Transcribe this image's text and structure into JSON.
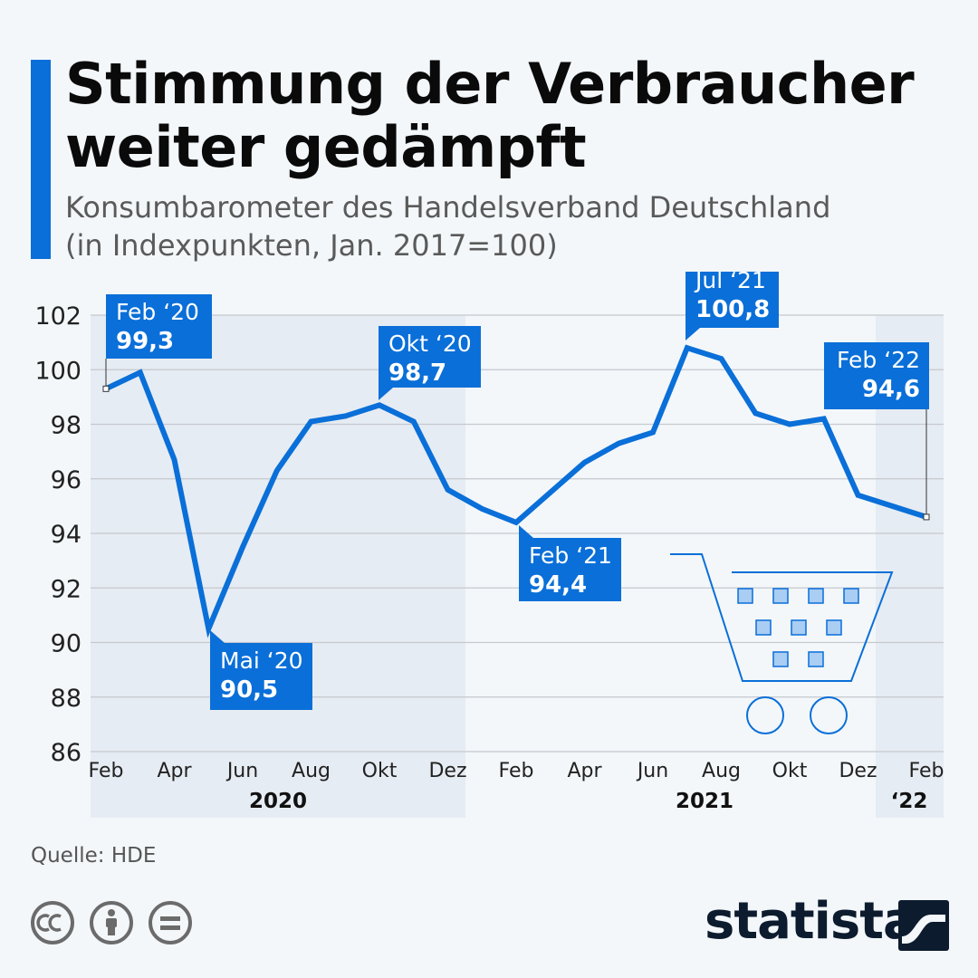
{
  "header": {
    "title": "Stimmung der Verbraucher weiter gedämpft",
    "subtitle_line1": "Konsumbarometer des Handelsverband Deutschland",
    "subtitle_line2": "(in Indexpunkten, Jan. 2017=100)"
  },
  "footer": {
    "source": "Quelle: HDE",
    "brand": "statista"
  },
  "colors": {
    "accent": "#0a6fd8",
    "line": "#0a6fd8",
    "shade": "#e6ecf3",
    "grid": "#c5c9ce"
  },
  "icons": [
    "cc-icon",
    "by-icon",
    "nd-icon",
    "shopping-cart-icon",
    "statista-logo-icon"
  ],
  "chart_data": {
    "type": "line",
    "ylim": [
      86,
      102
    ],
    "yticks": [
      86,
      88,
      90,
      92,
      94,
      96,
      98,
      100,
      102
    ],
    "xtick_labels": [
      "Feb",
      "Apr",
      "Jun",
      "Aug",
      "Okt",
      "Dez",
      "Feb",
      "Apr",
      "Jun",
      "Aug",
      "Okt",
      "Dez",
      "Feb"
    ],
    "year_labels": [
      "2020",
      "2021",
      "‘22"
    ],
    "grid": true,
    "series": [
      {
        "x": [
          "2020-02",
          "2020-03",
          "2020-04",
          "2020-05",
          "2020-06",
          "2020-07",
          "2020-08",
          "2020-09",
          "2020-10",
          "2020-11",
          "2020-12",
          "2021-01",
          "2021-02",
          "2021-03",
          "2021-04",
          "2021-05",
          "2021-06",
          "2021-07",
          "2021-08",
          "2021-09",
          "2021-10",
          "2021-11",
          "2021-12",
          "2022-01",
          "2022-02"
        ],
        "values": [
          99.3,
          99.9,
          96.7,
          90.5,
          93.5,
          96.3,
          98.1,
          98.3,
          98.7,
          98.1,
          95.6,
          94.9,
          94.4,
          95.5,
          96.6,
          97.3,
          97.7,
          100.8,
          100.4,
          98.4,
          98.0,
          98.2,
          95.4,
          95.0,
          94.6
        ]
      }
    ],
    "annotations": [
      {
        "label": "Feb ‘20",
        "value": "99,3"
      },
      {
        "label": "Mai ‘20",
        "value": "90,5"
      },
      {
        "label": "Okt ‘20",
        "value": "98,7"
      },
      {
        "label": "Feb ‘21",
        "value": "94,4"
      },
      {
        "label": "Jul ‘21",
        "value": "100,8"
      },
      {
        "label": "Feb ‘22",
        "value": "94,6"
      }
    ]
  }
}
